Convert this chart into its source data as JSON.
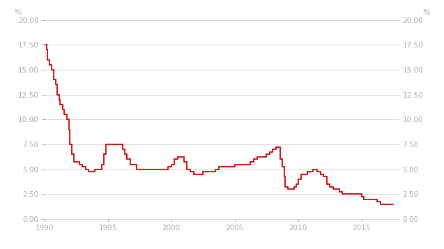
{
  "title": "",
  "xlabel": "",
  "ylabel_left": "%",
  "ylabel_right": "%",
  "line_color": "#cc0000",
  "line_width": 1.3,
  "background_color": "#ffffff",
  "grid_color": "#cccccc",
  "xlim": [
    1990,
    2018
  ],
  "ylim": [
    0,
    20
  ],
  "yticks": [
    0.0,
    2.5,
    5.0,
    7.5,
    10.0,
    12.5,
    15.0,
    17.5,
    20.0
  ],
  "xticks": [
    1990,
    1995,
    2000,
    2005,
    2010,
    2015
  ],
  "data": [
    [
      1990.0,
      17.5
    ],
    [
      1990.17,
      17.0
    ],
    [
      1990.25,
      16.0
    ],
    [
      1990.42,
      15.5
    ],
    [
      1990.58,
      15.0
    ],
    [
      1990.75,
      14.0
    ],
    [
      1990.92,
      13.5
    ],
    [
      1991.0,
      12.5
    ],
    [
      1991.17,
      12.0
    ],
    [
      1991.25,
      11.5
    ],
    [
      1991.42,
      11.0
    ],
    [
      1991.58,
      10.5
    ],
    [
      1991.75,
      10.0
    ],
    [
      1991.92,
      9.0
    ],
    [
      1992.0,
      7.5
    ],
    [
      1992.17,
      6.5
    ],
    [
      1992.33,
      5.75
    ],
    [
      1992.5,
      5.75
    ],
    [
      1992.75,
      5.5
    ],
    [
      1993.0,
      5.25
    ],
    [
      1993.25,
      5.0
    ],
    [
      1993.5,
      4.75
    ],
    [
      1993.75,
      4.75
    ],
    [
      1994.0,
      5.0
    ],
    [
      1994.25,
      5.0
    ],
    [
      1994.5,
      5.5
    ],
    [
      1994.67,
      6.5
    ],
    [
      1994.83,
      7.5
    ],
    [
      1995.0,
      7.5
    ],
    [
      1995.25,
      7.5
    ],
    [
      1995.5,
      7.5
    ],
    [
      1995.75,
      7.5
    ],
    [
      1996.0,
      7.5
    ],
    [
      1996.17,
      7.0
    ],
    [
      1996.33,
      6.5
    ],
    [
      1996.5,
      6.0
    ],
    [
      1996.75,
      5.5
    ],
    [
      1997.0,
      5.5
    ],
    [
      1997.25,
      5.0
    ],
    [
      1997.5,
      5.0
    ],
    [
      1997.75,
      5.0
    ],
    [
      1998.0,
      5.0
    ],
    [
      1998.25,
      5.0
    ],
    [
      1998.5,
      5.0
    ],
    [
      1998.75,
      5.0
    ],
    [
      1999.0,
      5.0
    ],
    [
      1999.25,
      5.0
    ],
    [
      1999.5,
      5.0
    ],
    [
      1999.75,
      5.25
    ],
    [
      2000.0,
      5.5
    ],
    [
      2000.25,
      6.0
    ],
    [
      2000.5,
      6.25
    ],
    [
      2000.75,
      6.25
    ],
    [
      2001.0,
      5.75
    ],
    [
      2001.25,
      5.0
    ],
    [
      2001.5,
      4.75
    ],
    [
      2001.75,
      4.5
    ],
    [
      2002.0,
      4.5
    ],
    [
      2002.25,
      4.5
    ],
    [
      2002.5,
      4.75
    ],
    [
      2002.75,
      4.75
    ],
    [
      2003.0,
      4.75
    ],
    [
      2003.25,
      4.75
    ],
    [
      2003.5,
      5.0
    ],
    [
      2003.75,
      5.25
    ],
    [
      2004.0,
      5.25
    ],
    [
      2004.25,
      5.25
    ],
    [
      2004.5,
      5.25
    ],
    [
      2004.75,
      5.25
    ],
    [
      2005.0,
      5.5
    ],
    [
      2005.25,
      5.5
    ],
    [
      2005.5,
      5.5
    ],
    [
      2005.75,
      5.5
    ],
    [
      2006.0,
      5.5
    ],
    [
      2006.25,
      5.75
    ],
    [
      2006.5,
      6.0
    ],
    [
      2006.75,
      6.25
    ],
    [
      2007.0,
      6.25
    ],
    [
      2007.25,
      6.25
    ],
    [
      2007.5,
      6.5
    ],
    [
      2007.75,
      6.75
    ],
    [
      2008.0,
      7.0
    ],
    [
      2008.25,
      7.25
    ],
    [
      2008.42,
      7.25
    ],
    [
      2008.58,
      6.0
    ],
    [
      2008.75,
      5.25
    ],
    [
      2008.92,
      4.25
    ],
    [
      2009.0,
      3.25
    ],
    [
      2009.17,
      3.0
    ],
    [
      2009.33,
      3.0
    ],
    [
      2009.67,
      3.25
    ],
    [
      2009.83,
      3.5
    ],
    [
      2010.0,
      4.0
    ],
    [
      2010.25,
      4.5
    ],
    [
      2010.5,
      4.5
    ],
    [
      2010.75,
      4.75
    ],
    [
      2011.0,
      4.75
    ],
    [
      2011.17,
      5.0
    ],
    [
      2011.5,
      4.75
    ],
    [
      2011.75,
      4.5
    ],
    [
      2012.0,
      4.25
    ],
    [
      2012.25,
      3.5
    ],
    [
      2012.5,
      3.25
    ],
    [
      2012.75,
      3.0
    ],
    [
      2013.0,
      3.0
    ],
    [
      2013.25,
      2.75
    ],
    [
      2013.5,
      2.5
    ],
    [
      2013.75,
      2.5
    ],
    [
      2014.0,
      2.5
    ],
    [
      2014.25,
      2.5
    ],
    [
      2014.5,
      2.5
    ],
    [
      2014.75,
      2.5
    ],
    [
      2015.0,
      2.25
    ],
    [
      2015.17,
      2.0
    ],
    [
      2015.5,
      2.0
    ],
    [
      2015.75,
      2.0
    ],
    [
      2016.0,
      2.0
    ],
    [
      2016.25,
      1.75
    ],
    [
      2016.5,
      1.5
    ],
    [
      2016.75,
      1.5
    ],
    [
      2017.0,
      1.5
    ],
    [
      2017.25,
      1.5
    ],
    [
      2017.5,
      1.5
    ]
  ]
}
